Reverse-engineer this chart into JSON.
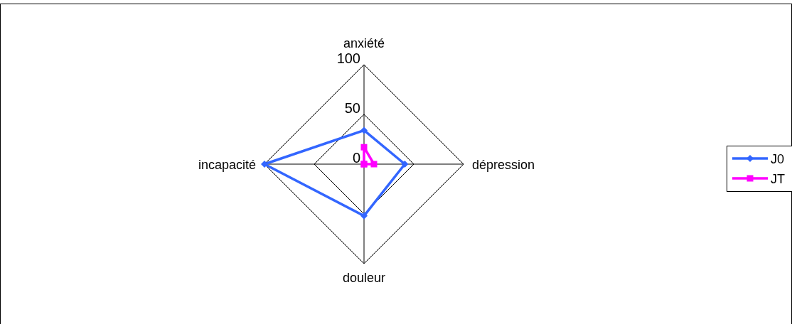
{
  "chart_data": {
    "type": "radar",
    "categories": [
      "anxiété",
      "dépression",
      "douleur",
      "incapacité"
    ],
    "series": [
      {
        "name": "J0",
        "color": "#3366ff",
        "marker": "diamond",
        "values": [
          34,
          41,
          52,
          100
        ]
      },
      {
        "name": "JT",
        "color": "#ff00ff",
        "marker": "square",
        "values": [
          17,
          10,
          0,
          0
        ]
      }
    ],
    "ylim": [
      0,
      100
    ],
    "yticks": [
      0,
      50,
      100
    ],
    "grid": true,
    "legend": "right"
  }
}
